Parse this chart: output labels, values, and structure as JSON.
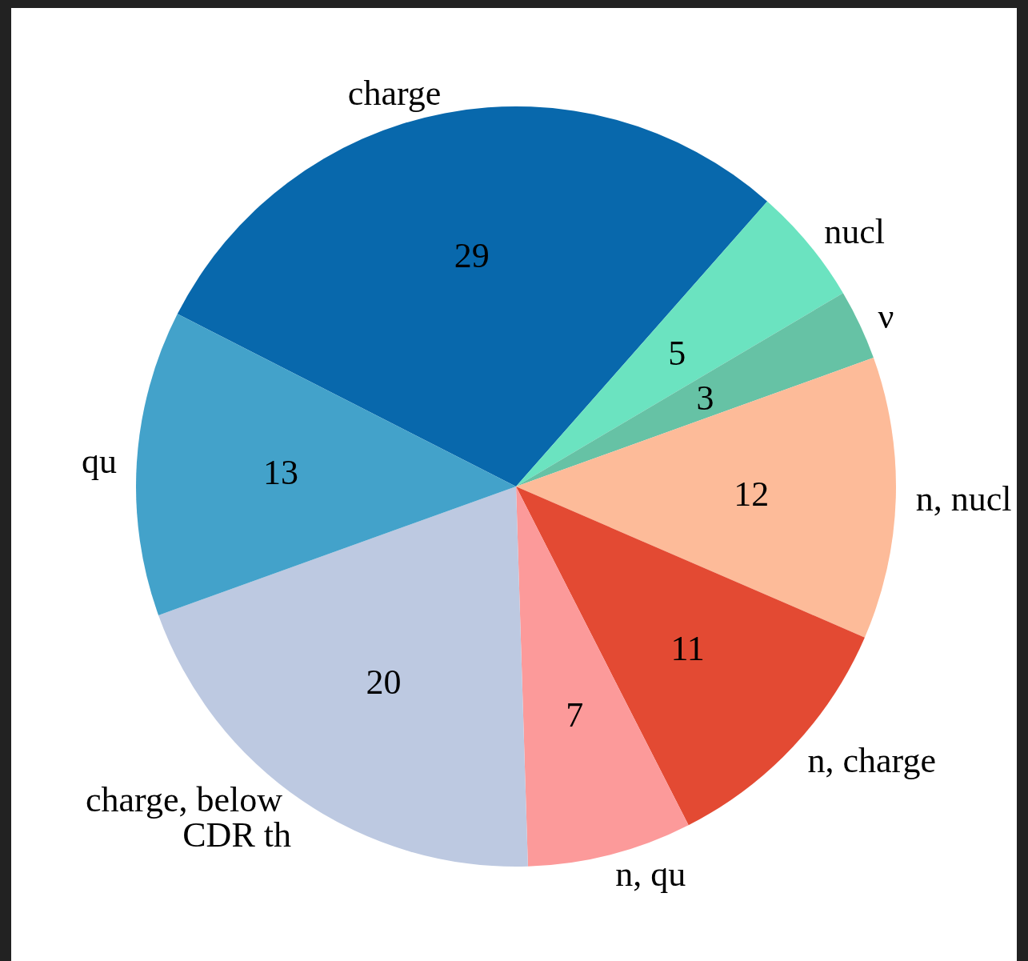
{
  "chart_data": {
    "type": "pie",
    "categories": [
      "charge",
      "nucl",
      "ν",
      "n, nucl",
      "n, charge",
      "n, qu",
      "charge, below CDR th",
      "qu"
    ],
    "values": [
      29,
      5,
      3,
      12,
      11,
      7,
      20,
      13
    ],
    "colors": [
      "#0868ac",
      "#6be3c0",
      "#66c2a5",
      "#fdbb99",
      "#e34a33",
      "#fc9a9a",
      "#bdc9e1",
      "#43a2ca"
    ],
    "data_labels": true,
    "legend": false
  }
}
